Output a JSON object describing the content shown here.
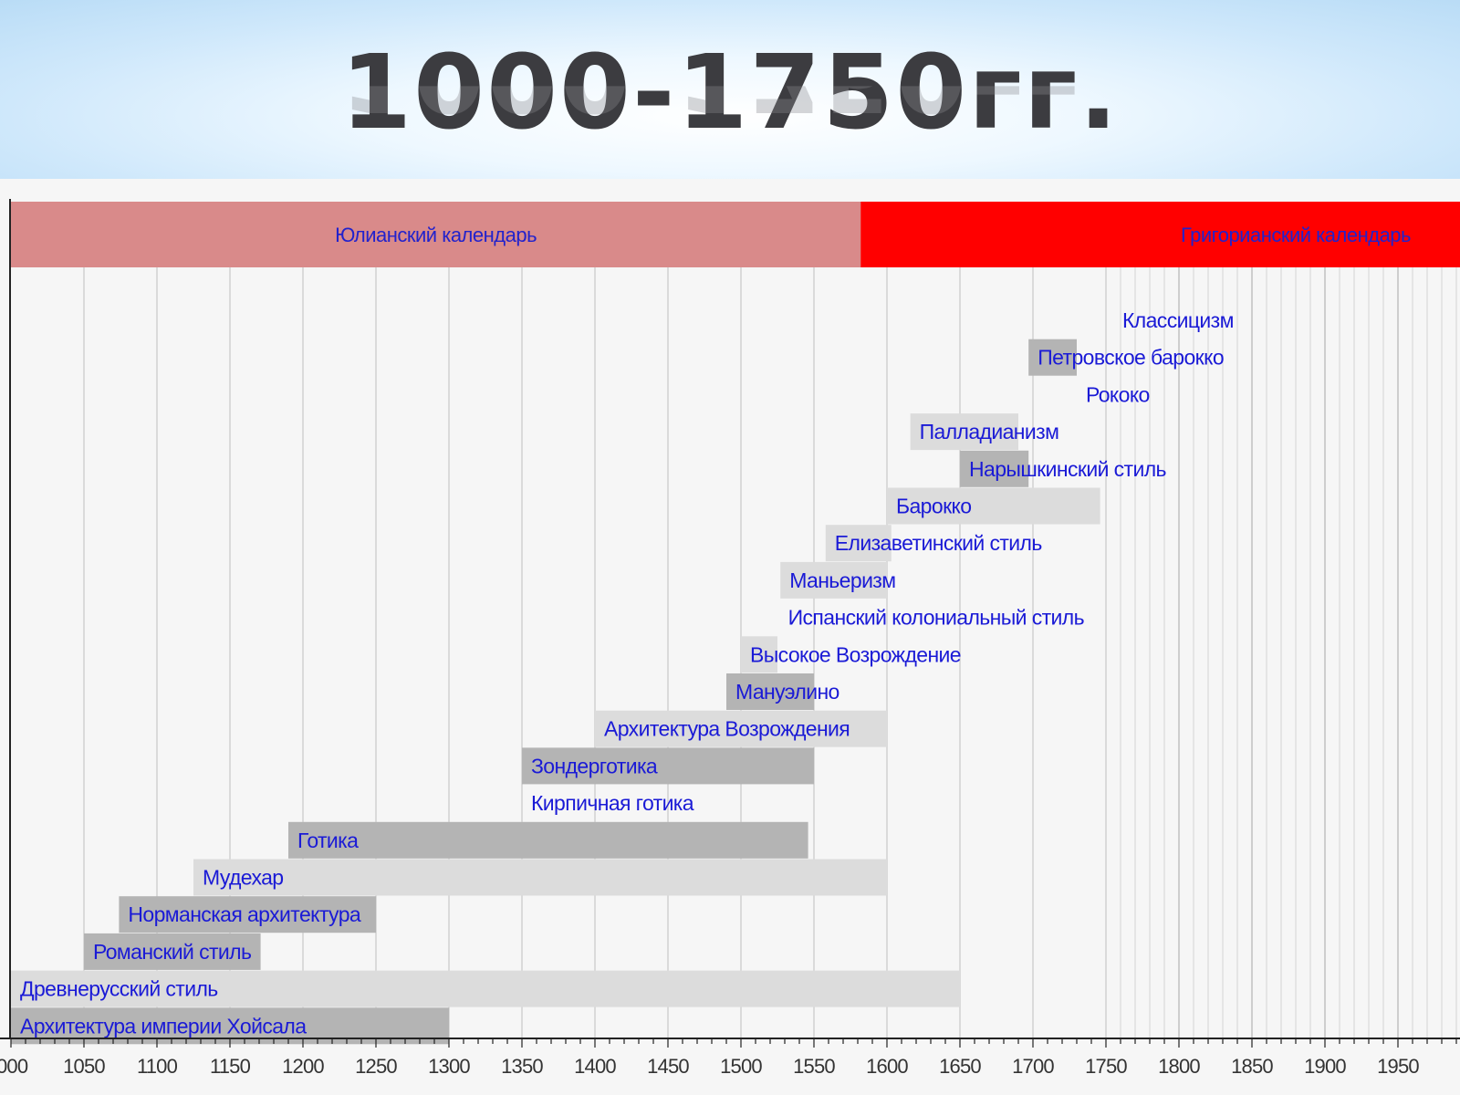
{
  "slide": {
    "title": "1000-1750гг."
  },
  "chart_data": {
    "type": "timeline",
    "title": "",
    "x_range": [
      1000,
      2000
    ],
    "compressed_after": 1750,
    "calendar_bands": [
      {
        "label": "Юлианский календарь",
        "start": 1000,
        "end": 1582,
        "color": "#d98a8a"
      },
      {
        "label": "Григорианский календарь",
        "start": 1582,
        "end": 2000,
        "color": "#ff0000"
      }
    ],
    "ticks": [
      "000",
      "1050",
      "1100",
      "1150",
      "1200",
      "1250",
      "1300",
      "1350",
      "1400",
      "1450",
      "1500",
      "1550",
      "1600",
      "1650",
      "1700",
      "1750",
      "1800",
      "1850",
      "1900",
      "1950",
      "2"
    ],
    "styles": [
      {
        "label": "Классицизм",
        "start": 1755,
        "end": 1755
      },
      {
        "label": "Петровское барокко",
        "start": 1697,
        "end": 1730
      },
      {
        "label": "Рококо",
        "start": 1730,
        "end": 1730
      },
      {
        "label": "Палладианизм",
        "start": 1616,
        "end": 1690
      },
      {
        "label": "Нарышкинский стиль",
        "start": 1650,
        "end": 1697
      },
      {
        "label": "Барокко",
        "start": 1600,
        "end": 1746
      },
      {
        "label": "Елизаветинский стиль",
        "start": 1558,
        "end": 1603
      },
      {
        "label": "Маньеризм",
        "start": 1527,
        "end": 1600
      },
      {
        "label": "Испанский колониальный стиль",
        "start": 1526,
        "end": 1526
      },
      {
        "label": "Высокое Возрождение",
        "start": 1500,
        "end": 1525
      },
      {
        "label": "Мануэлино",
        "start": 1490,
        "end": 1550
      },
      {
        "label": "Архитектура Возрождения",
        "start": 1400,
        "end": 1600
      },
      {
        "label": "Зондерготика",
        "start": 1350,
        "end": 1550
      },
      {
        "label": "Кирпичная готика",
        "start": 1350,
        "end": 1350
      },
      {
        "label": "Готика",
        "start": 1190,
        "end": 1546
      },
      {
        "label": "Мудехар",
        "start": 1125,
        "end": 1600
      },
      {
        "label": "Норманская архитектура",
        "start": 1074,
        "end": 1250
      },
      {
        "label": "Романский стиль",
        "start": 1050,
        "end": 1171
      },
      {
        "label": "Древнерусский стиль",
        "start": 1000,
        "end": 1650
      },
      {
        "label": "Архитектура империи Хойсала",
        "start": 1000,
        "end": 1300
      }
    ],
    "colors": {
      "bar_light": "#dcdcdc",
      "bar_dark": "#b4b4b4",
      "label": "#1a1ad6",
      "grid": "#c8c8c8"
    }
  }
}
